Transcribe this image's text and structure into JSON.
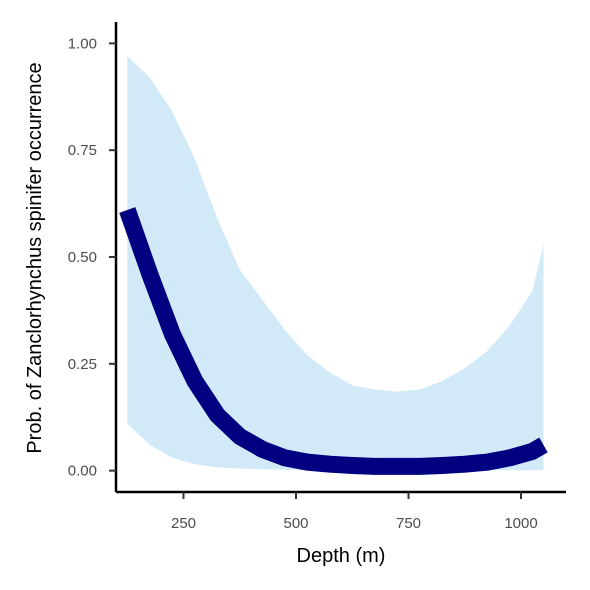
{
  "chart_data": {
    "type": "line",
    "title": "",
    "xlabel": "Depth (m)",
    "ylabel": "Prob. of  Zanclorhynchus spinifer  occurrence",
    "xlim": [
      100,
      1100
    ],
    "ylim": [
      -0.05,
      1.05
    ],
    "x_ticks": [
      250,
      500,
      750,
      1000
    ],
    "x_tick_labels": [
      "250",
      "500",
      "750",
      "1000"
    ],
    "y_ticks": [
      0,
      0.25,
      0.5,
      0.75,
      1
    ],
    "y_tick_labels": [
      "0.00",
      "0.25",
      "0.50",
      "0.75",
      "1.00"
    ],
    "grid": false,
    "colors": {
      "line": "#000080",
      "band": "#d2eaf7",
      "axis": "#000000"
    },
    "series": [
      {
        "x": [
          125,
          175,
          225,
          275,
          325,
          375,
          425,
          475,
          525,
          575,
          625,
          675,
          725,
          775,
          825,
          875,
          925,
          975,
          1025,
          1050
        ],
        "y": [
          0.61,
          0.46,
          0.32,
          0.21,
          0.13,
          0.08,
          0.05,
          0.03,
          0.02,
          0.015,
          0.012,
          0.01,
          0.01,
          0.01,
          0.012,
          0.015,
          0.02,
          0.03,
          0.045,
          0.06
        ],
        "lower": [
          0.11,
          0.06,
          0.03,
          0.015,
          0.008,
          0.005,
          0.003,
          0.002,
          0.001,
          0.001,
          0.001,
          0.001,
          0.001,
          0.001,
          0.001,
          0.001,
          0.001,
          0.001,
          0.001,
          0.001
        ],
        "upper": [
          0.97,
          0.92,
          0.84,
          0.73,
          0.59,
          0.47,
          0.4,
          0.33,
          0.27,
          0.23,
          0.2,
          0.19,
          0.185,
          0.19,
          0.21,
          0.24,
          0.28,
          0.34,
          0.42,
          0.53
        ]
      }
    ]
  }
}
